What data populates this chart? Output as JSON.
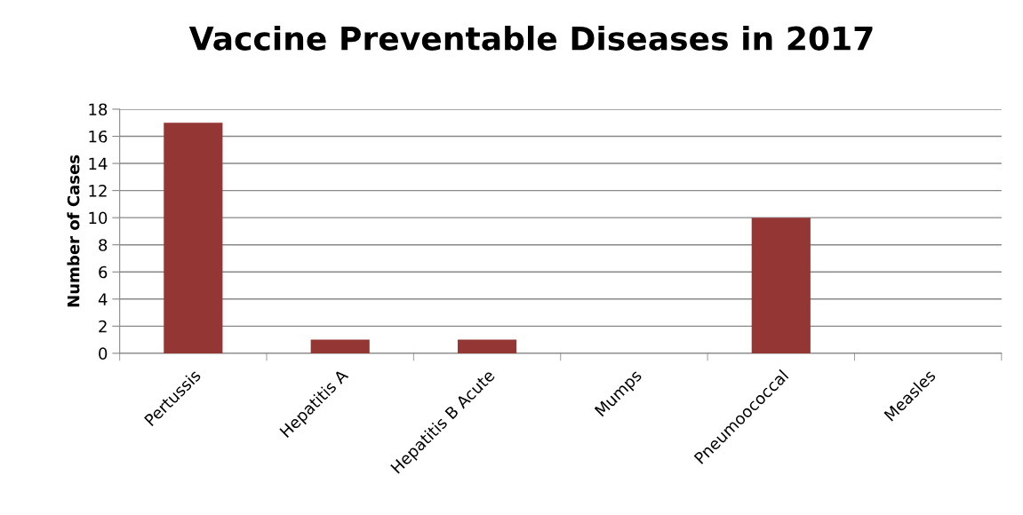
{
  "chart_data": {
    "type": "bar",
    "title": "Vaccine Preventable Diseases in 2017",
    "ylabel": "Number of Cases",
    "categories": [
      "Pertussis",
      "Hepatitis A",
      "Hepatitis B Acute",
      "Mumps",
      "Pneumoococcal",
      "Measles"
    ],
    "values": [
      17,
      1,
      1,
      0,
      10,
      0
    ],
    "color": "#943634",
    "ylim": [
      0,
      18
    ],
    "yticks": [
      0,
      2,
      4,
      6,
      8,
      10,
      12,
      14,
      16,
      18
    ],
    "grid": "y",
    "legend": false
  }
}
